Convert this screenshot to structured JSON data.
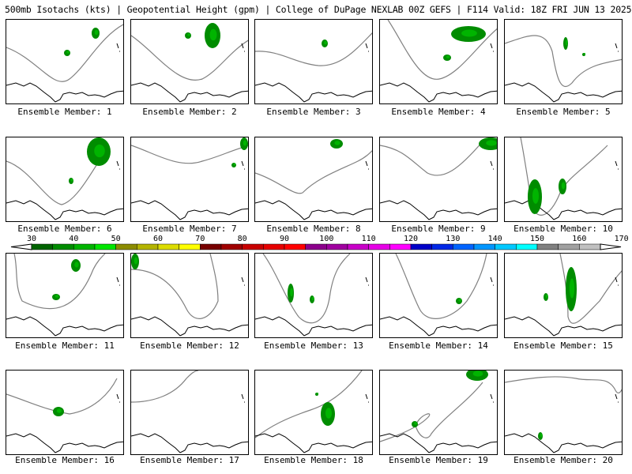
{
  "header": {
    "title": "500mb Isotachs (kts) | Geopotential Height (gpm) | College of DuPage NEXLAB   00Z GEFS | F114 Valid: 18Z FRI JUN 13 2025"
  },
  "panels": [
    {
      "label": "Ensemble Member: 1"
    },
    {
      "label": "Ensemble Member: 2"
    },
    {
      "label": "Ensemble Member: 3"
    },
    {
      "label": "Ensemble Member: 4"
    },
    {
      "label": "Ensemble Member: 5"
    },
    {
      "label": "Ensemble Member: 6"
    },
    {
      "label": "Ensemble Member: 7"
    },
    {
      "label": "Ensemble Member: 8"
    },
    {
      "label": "Ensemble Member: 9"
    },
    {
      "label": "Ensemble Member: 10"
    },
    {
      "label": "Ensemble Member: 11"
    },
    {
      "label": "Ensemble Member: 12"
    },
    {
      "label": "Ensemble Member: 13"
    },
    {
      "label": "Ensemble Member: 14"
    },
    {
      "label": "Ensemble Member: 15"
    },
    {
      "label": "Ensemble Member: 16"
    },
    {
      "label": "Ensemble Member: 17"
    },
    {
      "label": "Ensemble Member: 18"
    },
    {
      "label": "Ensemble Member: 19"
    },
    {
      "label": "Ensemble Member: 20"
    }
  ],
  "colorbar": {
    "ticks": [
      "30",
      "40",
      "50",
      "60",
      "70",
      "80",
      "90",
      "100",
      "110",
      "120",
      "130",
      "140",
      "150",
      "160",
      "170"
    ],
    "colors": [
      "#006400",
      "#008c00",
      "#00b400",
      "#00e600",
      "#8c8c00",
      "#b4b400",
      "#dcdc00",
      "#ffff00",
      "#780000",
      "#a00000",
      "#c80000",
      "#e60000",
      "#ff0000",
      "#8c008c",
      "#a000a0",
      "#c800c8",
      "#e600e6",
      "#ff00ff",
      "#0000c8",
      "#0028e6",
      "#0064ff",
      "#0096ff",
      "#00c8ff",
      "#00ffff",
      "#808080",
      "#a0a0a0",
      "#c0c0c0"
    ]
  }
}
